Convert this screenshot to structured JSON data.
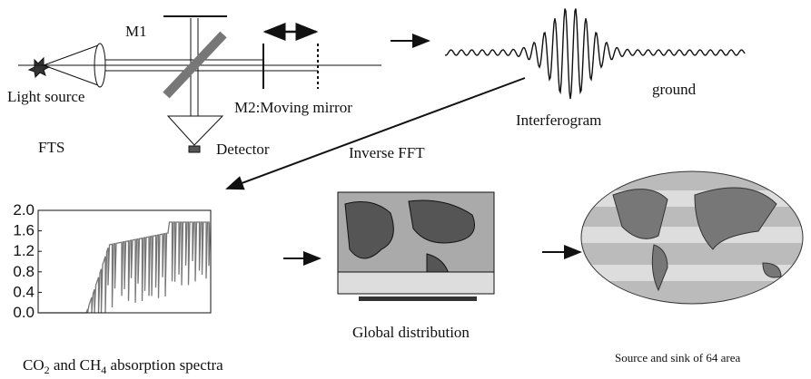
{
  "fts": {
    "mirror_1": "M1",
    "source": "Light source",
    "moving_mirror": "M2:Moving mirror",
    "label": "FTS",
    "detector": "Detector"
  },
  "interferogram": {
    "label": "Interferogram",
    "note": "ground"
  },
  "transform": "Inverse FFT",
  "spectrum": {
    "yticks": [
      "2.0",
      "1.6",
      "1.2",
      "0.8",
      "0.4",
      "0.0"
    ],
    "caption": {
      "part1": "CO",
      "sub1": "2",
      "part2": " and CH",
      "sub2": "4",
      "part3": " absorption spectra"
    }
  },
  "distribution": "Global distribution",
  "flux": "Source and sink of 64 area"
}
